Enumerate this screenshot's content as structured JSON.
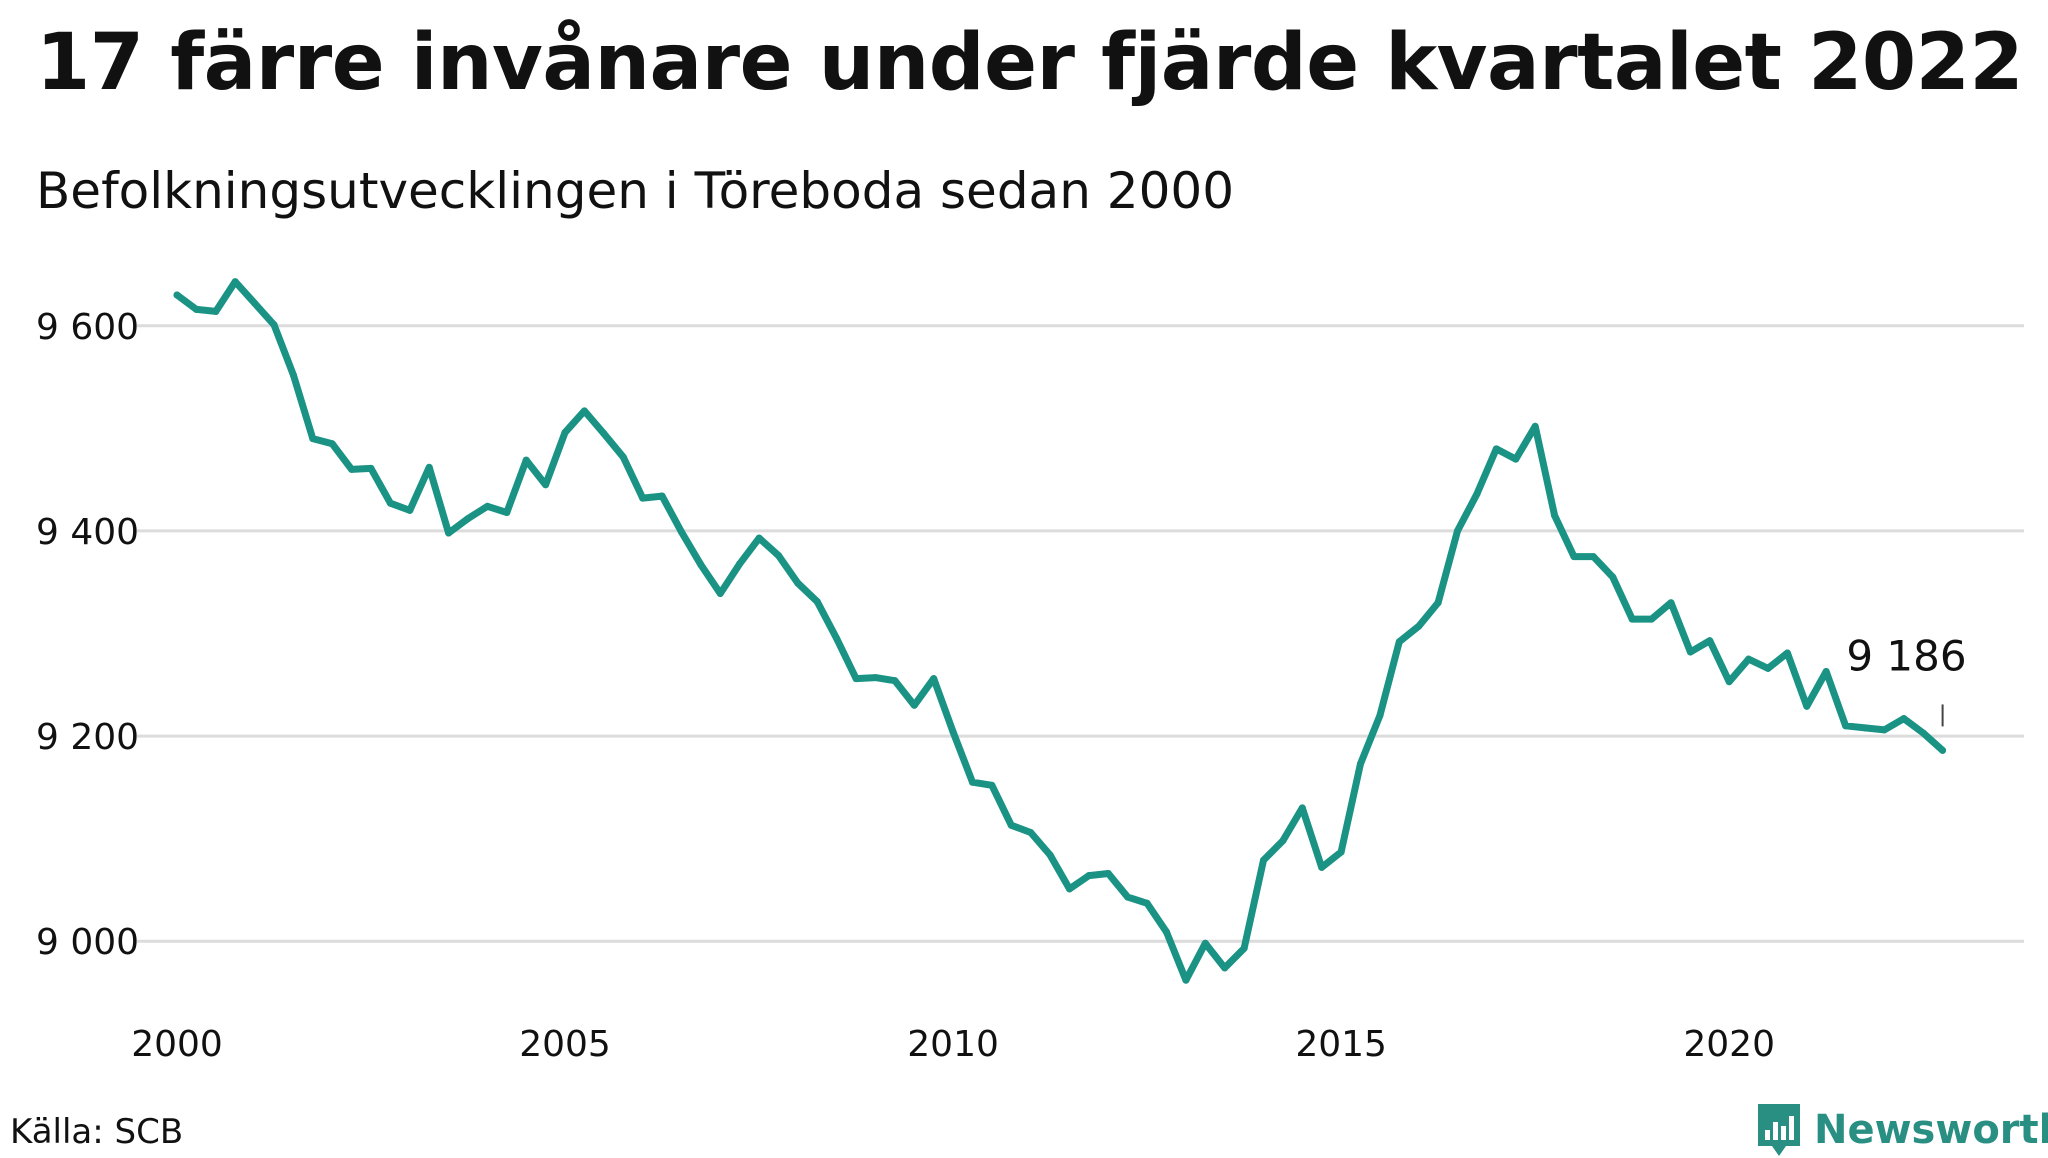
{
  "title": "17 färre invånare under fjärde kvartalet 2022",
  "subtitle": "Befolkningsutvecklingen i Töreboda sedan 2000",
  "source": "Källa: SCB",
  "brand": "Newsworthy",
  "colors": {
    "line": "#1a9385",
    "grid": "#dcdcdc",
    "text": "#111111",
    "brand": "#2a8f83"
  },
  "chart_data": {
    "type": "line",
    "title": "17 färre invånare under fjärde kvartalet 2022",
    "xlabel": "",
    "ylabel": "",
    "xlim": [
      2000,
      2023
    ],
    "ylim": [
      8930,
      9670
    ],
    "grid": true,
    "x_ticks": [
      {
        "value": 2000,
        "label": "2000"
      },
      {
        "value": 2005,
        "label": "2005"
      },
      {
        "value": 2010,
        "label": "2010"
      },
      {
        "value": 2015,
        "label": "2015"
      },
      {
        "value": 2020,
        "label": "2020"
      }
    ],
    "y_ticks": [
      {
        "value": 9000,
        "label": "9 000"
      },
      {
        "value": 9200,
        "label": "9 200"
      },
      {
        "value": 9400,
        "label": "9 400"
      },
      {
        "value": 9600,
        "label": "9 600"
      }
    ],
    "annotation": {
      "x": 2022.75,
      "y": 9186,
      "label": "9 186"
    },
    "x": [
      2000.0,
      2000.25,
      2000.5,
      2000.75,
      2001.0,
      2001.25,
      2001.5,
      2001.75,
      2002.0,
      2002.25,
      2002.5,
      2002.75,
      2003.0,
      2003.25,
      2003.5,
      2003.75,
      2004.0,
      2004.25,
      2004.5,
      2004.75,
      2005.0,
      2005.25,
      2005.5,
      2005.75,
      2006.0,
      2006.25,
      2006.5,
      2006.75,
      2007.0,
      2007.25,
      2007.5,
      2007.75,
      2008.0,
      2008.25,
      2008.5,
      2008.75,
      2009.0,
      2009.25,
      2009.5,
      2009.75,
      2010.0,
      2010.25,
      2010.5,
      2010.75,
      2011.0,
      2011.25,
      2011.5,
      2011.75,
      2012.0,
      2012.25,
      2012.5,
      2012.75,
      2013.0,
      2013.25,
      2013.5,
      2013.75,
      2014.0,
      2014.25,
      2014.5,
      2014.75,
      2015.0,
      2015.25,
      2015.5,
      2015.75,
      2016.0,
      2016.25,
      2016.5,
      2016.75,
      2017.0,
      2017.25,
      2017.5,
      2017.75,
      2018.0,
      2018.25,
      2018.5,
      2018.75,
      2019.0,
      2019.25,
      2019.5,
      2019.75,
      2020.0,
      2020.25,
      2020.5,
      2020.75,
      2021.0,
      2021.25,
      2021.5,
      2021.75,
      2022.0,
      2022.25,
      2022.5,
      2022.75
    ],
    "series": [
      {
        "values": [
          9630,
          9616,
          9614,
          9643,
          9622,
          9601,
          9552,
          9490,
          9485,
          9460,
          9461,
          9427,
          9420,
          9462,
          9398,
          9412,
          9424,
          9418,
          9469,
          9445,
          9496,
          9517,
          9495,
          9472,
          9432,
          9434,
          9399,
          9367,
          9339,
          9368,
          9393,
          9376,
          9349,
          9331,
          9295,
          9256,
          9257,
          9254,
          9230,
          9256,
          9204,
          9155,
          9152,
          9113,
          9106,
          9084,
          9051,
          9064,
          9066,
          9043,
          9037,
          9009,
          8962,
          8998,
          8974,
          8993,
          9079,
          9098,
          9130,
          9072,
          9087,
          9173,
          9220,
          9292,
          9307,
          9330,
          9400,
          9436,
          9480,
          9470,
          9502,
          9415,
          9375,
          9375,
          9355,
          9314,
          9314,
          9330,
          9282,
          9293,
          9253,
          9275,
          9266,
          9281,
          9229,
          9263,
          9210,
          9208,
          9206,
          9217,
          9203,
          9186
        ]
      }
    ]
  }
}
